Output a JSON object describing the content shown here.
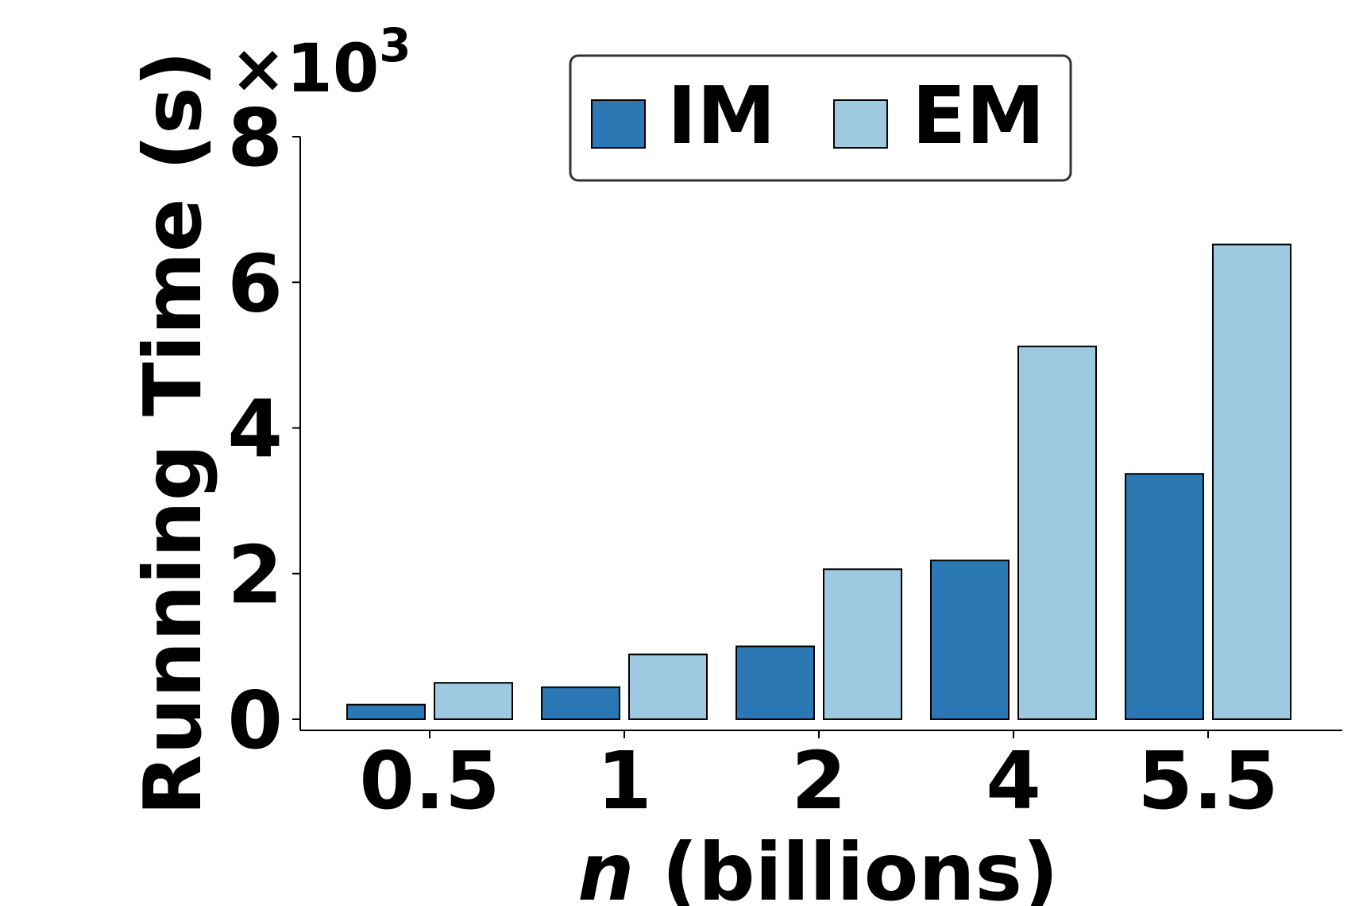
{
  "chart_data": {
    "type": "bar",
    "categories": [
      "0.5",
      "1",
      "2",
      "4",
      "5.5"
    ],
    "series": [
      {
        "name": "IM",
        "values": [
          0.2,
          0.44,
          1.0,
          2.18,
          3.37
        ],
        "color": "#2b78b5"
      },
      {
        "name": "EM",
        "values": [
          0.5,
          0.89,
          2.06,
          5.12,
          6.52
        ],
        "color": "#9ecae1"
      }
    ],
    "xlabel": {
      "variable": "n",
      "rest": " (billions)"
    },
    "ylabel": "Running Time (s)",
    "ylim": [
      0,
      8
    ],
    "yticks": [
      "0",
      "2",
      "4",
      "6",
      "8"
    ],
    "y_scale_label": {
      "base": "×10",
      "exponent": "3"
    },
    "legend": {
      "placement": "top-center",
      "entries": [
        "IM",
        "EM"
      ]
    },
    "grid": false
  }
}
